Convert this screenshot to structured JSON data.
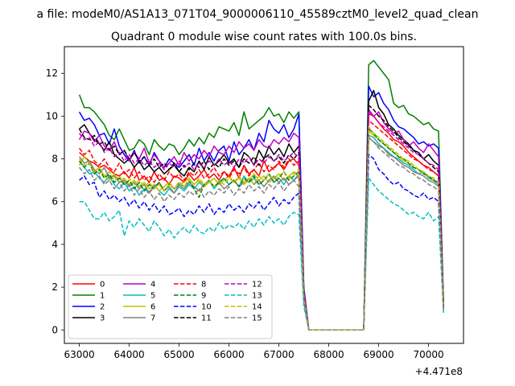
{
  "figure": {
    "suptitle": "a file: modeM0/AS1A13_071T04_9000006110_45589cztM0_level2_quad_clean",
    "title": "Quadrant 0 module wise count rates with 100.0s bins."
  },
  "chart_data": {
    "type": "line",
    "title": "Quadrant 0 module wise count rates with 100.0s bins.",
    "xlabel": "",
    "ylabel": "",
    "x_offset_label": "+4.471e8",
    "xlim": [
      62700,
      70700
    ],
    "ylim": [
      -0.63,
      13.25
    ],
    "xticks": [
      63000,
      64000,
      65000,
      66000,
      67000,
      68000,
      69000,
      70000
    ],
    "yticks": [
      0,
      2,
      4,
      6,
      8,
      10,
      12
    ],
    "grid": false,
    "legend": {
      "placement": "lower-left",
      "columns": 4
    },
    "segments": [
      {
        "x_start": 63000,
        "x_end": 67400,
        "step": 100
      },
      {
        "x_start": 67500,
        "x_end": 67500,
        "step": 100
      },
      {
        "x_start": 67600,
        "x_end": 68700,
        "step": 100
      },
      {
        "x_start": 68800,
        "x_end": 70300,
        "step": 100
      }
    ],
    "series": [
      {
        "name": "0",
        "color": "#ff0000",
        "dash": "solid",
        "active": [
          8.3,
          8.1,
          7.9,
          7.8,
          7.6,
          7.7,
          7.5,
          7.3,
          7.2,
          7.4,
          7.1,
          7.6,
          7.0,
          7.2,
          6.9,
          7.4,
          7.0,
          7.1,
          6.8,
          7.2,
          7.1,
          6.9,
          7.3,
          7.0,
          7.2,
          7.5,
          7.1,
          7.3,
          7.0,
          7.4,
          7.2,
          7.6,
          7.1,
          7.7,
          7.3,
          7.5,
          7.2,
          7.9,
          7.4,
          7.6,
          7.8,
          7.5,
          7.9,
          8.0,
          7.7
        ],
        "drop": 1.6,
        "recover": [
          10.1,
          10.0,
          9.7,
          9.4,
          9.2,
          8.9,
          8.8,
          8.6,
          8.3,
          8.1,
          7.9,
          7.7,
          7.6,
          7.4,
          7.2,
          1.1
        ]
      },
      {
        "name": "1",
        "color": "#008000",
        "dash": "solid",
        "active": [
          11.0,
          10.4,
          10.4,
          10.2,
          9.9,
          9.6,
          9.1,
          8.9,
          9.4,
          8.9,
          8.4,
          8.5,
          8.9,
          8.7,
          8.2,
          8.9,
          8.6,
          8.4,
          8.7,
          8.6,
          8.2,
          8.5,
          8.9,
          8.6,
          9.0,
          8.7,
          9.2,
          9.0,
          9.5,
          9.4,
          9.3,
          9.7,
          9.1,
          10.2,
          9.4,
          9.6,
          9.8,
          10.0,
          10.4,
          10.0,
          10.1,
          9.7,
          10.2,
          9.9,
          10.2
        ],
        "drop": 2.0,
        "recover": [
          12.4,
          12.6,
          12.3,
          12.0,
          11.7,
          10.6,
          10.4,
          10.5,
          10.1,
          10.0,
          9.8,
          9.6,
          9.7,
          9.4,
          9.3,
          1.3
        ]
      },
      {
        "name": "2",
        "color": "#0000ff",
        "dash": "solid",
        "active": [
          10.2,
          9.8,
          9.9,
          9.6,
          9.1,
          9.2,
          8.7,
          9.4,
          8.6,
          8.2,
          7.9,
          8.4,
          7.8,
          8.1,
          7.7,
          8.3,
          7.9,
          7.6,
          8.0,
          7.8,
          7.6,
          7.9,
          8.2,
          7.7,
          8.5,
          7.9,
          8.3,
          7.9,
          8.4,
          8.6,
          7.9,
          8.8,
          8.2,
          8.5,
          8.9,
          8.4,
          9.2,
          8.8,
          9.8,
          9.4,
          9.2,
          9.6,
          9.0,
          9.4,
          10.1
        ],
        "drop": 1.9,
        "recover": [
          11.4,
          10.9,
          11.1,
          10.6,
          10.3,
          9.8,
          9.5,
          9.4,
          9.2,
          9.0,
          8.7,
          8.8,
          8.6,
          8.7,
          8.5,
          1.2
        ]
      },
      {
        "name": "3",
        "color": "#000000",
        "dash": "solid",
        "active": [
          9.4,
          9.6,
          9.2,
          8.9,
          8.7,
          8.4,
          8.8,
          8.2,
          8.0,
          7.8,
          8.0,
          7.6,
          7.9,
          7.5,
          7.7,
          7.4,
          7.6,
          7.3,
          7.5,
          7.7,
          7.4,
          7.2,
          7.6,
          7.4,
          7.9,
          7.5,
          8.1,
          7.7,
          7.9,
          8.2,
          7.8,
          8.0,
          7.6,
          8.3,
          8.1,
          7.7,
          8.4,
          8.0,
          8.6,
          8.2,
          8.5,
          8.1,
          8.7,
          8.3,
          8.6
        ],
        "drop": 1.7,
        "recover": [
          10.7,
          11.2,
          10.4,
          10.1,
          9.6,
          9.4,
          9.1,
          8.9,
          8.7,
          8.4,
          8.3,
          8.0,
          8.2,
          7.9,
          7.7,
          1.1
        ]
      },
      {
        "name": "4",
        "color": "#bf00bf",
        "dash": "solid",
        "active": [
          8.9,
          9.3,
          9.2,
          8.8,
          9.1,
          8.6,
          8.4,
          8.8,
          8.2,
          8.4,
          7.9,
          8.3,
          8.0,
          8.5,
          7.8,
          8.2,
          7.9,
          7.6,
          7.8,
          8.1,
          7.7,
          8.3,
          7.9,
          8.2,
          8.0,
          8.4,
          8.1,
          8.6,
          8.3,
          8.2,
          8.6,
          8.3,
          8.8,
          8.5,
          8.7,
          8.4,
          8.9,
          8.6,
          8.5,
          8.9,
          8.7,
          9.0,
          8.8,
          9.2,
          9.0
        ],
        "drop": 1.8,
        "recover": [
          10.3,
          10.0,
          10.2,
          9.7,
          9.4,
          9.2,
          9.3,
          8.9,
          8.6,
          8.8,
          8.5,
          8.3,
          8.7,
          8.4,
          8.1,
          1.2
        ]
      },
      {
        "name": "5",
        "color": "#00bfbf",
        "dash": "solid",
        "active": [
          7.9,
          7.6,
          7.3,
          7.4,
          7.1,
          6.9,
          7.2,
          6.8,
          6.6,
          6.9,
          6.5,
          6.7,
          6.3,
          6.6,
          6.4,
          6.8,
          6.5,
          6.3,
          6.6,
          6.4,
          6.7,
          6.5,
          6.8,
          6.6,
          6.9,
          6.7,
          7.0,
          6.6,
          6.9,
          7.1,
          6.8,
          7.0,
          6.7,
          7.2,
          6.9,
          7.1,
          6.8,
          7.0,
          7.3,
          6.9,
          7.1,
          6.8,
          7.2,
          7.0,
          7.3
        ],
        "drop": 1.5,
        "recover": [
          9.1,
          9.0,
          8.7,
          8.5,
          8.3,
          8.1,
          8.0,
          7.8,
          7.7,
          7.5,
          7.3,
          7.4,
          7.1,
          7.0,
          6.8,
          1.0
        ]
      },
      {
        "name": "6",
        "color": "#bfbf00",
        "dash": "solid",
        "active": [
          7.7,
          8.1,
          7.8,
          7.4,
          7.6,
          7.2,
          7.0,
          7.3,
          6.9,
          7.1,
          6.8,
          7.0,
          6.7,
          6.9,
          6.6,
          6.8,
          6.5,
          6.7,
          6.9,
          6.6,
          6.8,
          6.9,
          7.1,
          6.8,
          7.0,
          6.7,
          6.9,
          7.1,
          6.8,
          7.0,
          7.2,
          6.9,
          7.1,
          6.8,
          7.0,
          7.3,
          7.0,
          7.2,
          6.9,
          7.1,
          7.3,
          7.0,
          7.2,
          7.4,
          7.1
        ],
        "drop": 1.5,
        "recover": [
          9.3,
          9.1,
          8.9,
          8.7,
          8.5,
          8.3,
          8.1,
          7.9,
          7.8,
          7.6,
          7.5,
          7.3,
          7.2,
          7.0,
          6.9,
          1.0
        ]
      },
      {
        "name": "7",
        "color": "#808080",
        "dash": "solid",
        "active": [
          8.1,
          7.8,
          7.9,
          7.5,
          7.3,
          7.6,
          7.1,
          7.2,
          6.9,
          7.0,
          6.7,
          6.9,
          6.6,
          6.8,
          6.4,
          6.7,
          6.9,
          6.5,
          6.7,
          6.4,
          6.8,
          6.6,
          6.9,
          6.7,
          6.5,
          6.8,
          7.0,
          6.7,
          6.9,
          6.6,
          6.8,
          7.0,
          6.7,
          6.9,
          7.1,
          6.8,
          7.0,
          6.7,
          7.0,
          7.2,
          6.9,
          7.1,
          6.8,
          7.0,
          7.2
        ],
        "drop": 1.5,
        "recover": [
          9.0,
          8.8,
          8.6,
          8.5,
          8.2,
          8.1,
          7.9,
          7.7,
          7.6,
          7.4,
          7.3,
          7.2,
          7.0,
          6.9,
          6.7,
          0.9
        ]
      },
      {
        "name": "8",
        "color": "#ff0000",
        "dash": "dashed",
        "active": [
          8.5,
          8.2,
          8.4,
          7.9,
          7.7,
          8.0,
          7.6,
          7.4,
          7.8,
          7.3,
          7.5,
          7.1,
          7.4,
          7.0,
          7.2,
          6.9,
          7.3,
          7.0,
          7.4,
          7.1,
          7.3,
          7.0,
          7.4,
          7.2,
          7.5,
          7.1,
          7.3,
          7.6,
          7.2,
          7.4,
          7.1,
          7.5,
          7.3,
          7.6,
          7.2,
          7.5,
          7.8,
          7.4,
          7.7,
          7.5,
          7.9,
          7.6,
          8.0,
          7.7,
          7.9
        ],
        "drop": 1.6,
        "recover": [
          9.8,
          9.6,
          9.4,
          9.2,
          9.0,
          8.8,
          8.6,
          8.4,
          8.2,
          8.0,
          7.9,
          7.7,
          7.5,
          7.4,
          7.2,
          1.1
        ]
      },
      {
        "name": "9",
        "color": "#008000",
        "dash": "dashed",
        "active": [
          7.9,
          7.6,
          7.8,
          7.3,
          7.5,
          7.1,
          7.3,
          6.9,
          7.1,
          6.8,
          7.0,
          6.6,
          6.9,
          6.5,
          6.8,
          6.6,
          6.9,
          6.5,
          6.8,
          6.6,
          6.9,
          6.7,
          7.0,
          6.6,
          6.2,
          6.8,
          7.0,
          6.7,
          6.9,
          7.1,
          6.8,
          7.0,
          6.7,
          7.1,
          6.9,
          7.2,
          6.8,
          7.0,
          7.3,
          6.9,
          7.1,
          7.4,
          7.0,
          7.2,
          7.4
        ],
        "drop": 1.5,
        "recover": [
          9.4,
          9.2,
          8.9,
          8.7,
          8.5,
          8.3,
          8.1,
          8.0,
          7.8,
          7.6,
          7.5,
          7.3,
          7.2,
          7.0,
          6.9,
          1.0
        ]
      },
      {
        "name": "10",
        "color": "#0000ff",
        "dash": "dashed",
        "active": [
          7.0,
          7.2,
          6.8,
          6.9,
          6.2,
          6.5,
          6.1,
          6.3,
          6.0,
          6.2,
          5.8,
          6.1,
          5.7,
          6.0,
          5.6,
          5.9,
          5.5,
          5.8,
          5.4,
          5.5,
          5.7,
          5.3,
          5.6,
          5.4,
          5.8,
          5.5,
          5.9,
          5.4,
          5.7,
          5.5,
          5.9,
          5.6,
          5.8,
          5.5,
          5.9,
          5.7,
          6.0,
          5.6,
          5.9,
          6.2,
          5.8,
          6.1,
          5.9,
          6.2,
          6.4
        ],
        "drop": 1.3,
        "recover": [
          8.2,
          8.0,
          7.5,
          7.3,
          7.0,
          6.8,
          6.9,
          6.6,
          6.5,
          6.3,
          6.2,
          6.4,
          6.1,
          6.2,
          6.0,
          0.9
        ]
      },
      {
        "name": "11",
        "color": "#000000",
        "dash": "dashed",
        "active": [
          9.4,
          9.0,
          8.9,
          9.1,
          8.7,
          8.8,
          8.4,
          8.6,
          8.2,
          8.4,
          8.0,
          8.3,
          7.9,
          8.1,
          7.7,
          8.0,
          7.6,
          7.8,
          7.5,
          7.8,
          7.4,
          7.7,
          7.5,
          7.8,
          7.6,
          7.9,
          7.5,
          7.8,
          7.6,
          8.0,
          7.7,
          7.9,
          7.6,
          8.0,
          7.8,
          8.1,
          7.7,
          8.0,
          8.2,
          7.9,
          8.1,
          7.8,
          8.2,
          8.0,
          8.3
        ],
        "drop": 1.7,
        "recover": [
          10.5,
          10.3,
          10.0,
          9.8,
          9.5,
          9.3,
          9.0,
          8.8,
          8.6,
          8.4,
          8.2,
          8.0,
          7.8,
          7.6,
          7.4,
          1.1
        ]
      },
      {
        "name": "12",
        "color": "#bf00bf",
        "dash": "dashed",
        "active": [
          9.2,
          8.9,
          9.0,
          8.6,
          8.8,
          8.3,
          8.5,
          8.1,
          8.3,
          7.9,
          8.2,
          7.8,
          8.0,
          7.7,
          7.9,
          7.6,
          7.8,
          7.5,
          7.8,
          7.6,
          7.9,
          7.6,
          7.8,
          7.5,
          7.8,
          7.6,
          7.9,
          7.7,
          8.0,
          7.7,
          7.9,
          7.6,
          8.0,
          7.8,
          8.1,
          7.7,
          8.0,
          7.8,
          8.1,
          7.9,
          8.2,
          7.9,
          8.1,
          8.3,
          8.0
        ],
        "drop": 1.7,
        "recover": [
          10.2,
          10.0,
          9.7,
          9.5,
          9.3,
          9.1,
          8.9,
          8.7,
          8.5,
          8.3,
          8.2,
          8.0,
          7.8,
          7.7,
          7.5,
          1.1
        ]
      },
      {
        "name": "13",
        "color": "#00bfbf",
        "dash": "dashed",
        "active": [
          6.0,
          6.0,
          5.6,
          5.2,
          5.2,
          5.5,
          5.1,
          5.3,
          5.6,
          4.4,
          5.1,
          4.8,
          5.2,
          4.9,
          4.6,
          5.1,
          4.8,
          4.4,
          4.7,
          4.3,
          4.6,
          4.8,
          4.5,
          4.9,
          4.6,
          4.5,
          4.8,
          4.6,
          5.0,
          4.7,
          4.9,
          4.8,
          5.0,
          4.7,
          5.1,
          4.8,
          5.2,
          4.9,
          5.3,
          5.0,
          5.2,
          4.9,
          5.3,
          5.5,
          5.4
        ],
        "drop": 1.1,
        "recover": [
          7.1,
          6.8,
          6.5,
          6.3,
          6.1,
          5.9,
          5.8,
          5.6,
          5.4,
          5.5,
          5.3,
          5.2,
          5.5,
          5.1,
          5.3,
          0.8
        ]
      },
      {
        "name": "14",
        "color": "#bfbf00",
        "dash": "dashed",
        "active": [
          8.0,
          7.7,
          7.8,
          7.4,
          7.6,
          7.2,
          7.4,
          7.0,
          7.2,
          6.9,
          7.1,
          6.8,
          7.0,
          6.7,
          6.9,
          6.6,
          6.8,
          6.5,
          6.8,
          6.6,
          6.9,
          6.7,
          7.0,
          6.8,
          7.1,
          6.8,
          7.0,
          6.7,
          7.0,
          6.8,
          7.1,
          6.9,
          7.2,
          6.9,
          7.1,
          6.8,
          7.2,
          7.0,
          7.3,
          7.0,
          7.2,
          7.4,
          7.1,
          7.3,
          7.5
        ],
        "drop": 1.5,
        "recover": [
          9.5,
          9.2,
          9.0,
          8.8,
          8.6,
          8.4,
          8.2,
          8.0,
          7.9,
          7.7,
          7.5,
          7.4,
          7.2,
          7.1,
          6.9,
          1.0
        ]
      },
      {
        "name": "15",
        "color": "#808080",
        "dash": "dashed",
        "active": [
          7.6,
          7.3,
          7.5,
          7.0,
          7.2,
          6.8,
          7.0,
          6.6,
          6.9,
          6.5,
          6.8,
          6.3,
          6.6,
          6.2,
          6.5,
          6.1,
          6.4,
          6.0,
          6.3,
          6.1,
          6.4,
          6.2,
          6.5,
          6.3,
          6.6,
          6.2,
          6.5,
          6.3,
          6.6,
          6.4,
          6.7,
          6.3,
          6.6,
          6.4,
          6.8,
          6.5,
          6.7,
          6.4,
          6.8,
          6.6,
          6.9,
          6.5,
          6.8,
          7.0,
          6.7
        ],
        "drop": 1.4,
        "recover": [
          9.0,
          8.8,
          8.5,
          8.3,
          8.1,
          7.9,
          7.7,
          7.6,
          7.4,
          7.3,
          7.1,
          7.0,
          6.8,
          6.7,
          6.5,
          0.9
        ]
      }
    ]
  }
}
